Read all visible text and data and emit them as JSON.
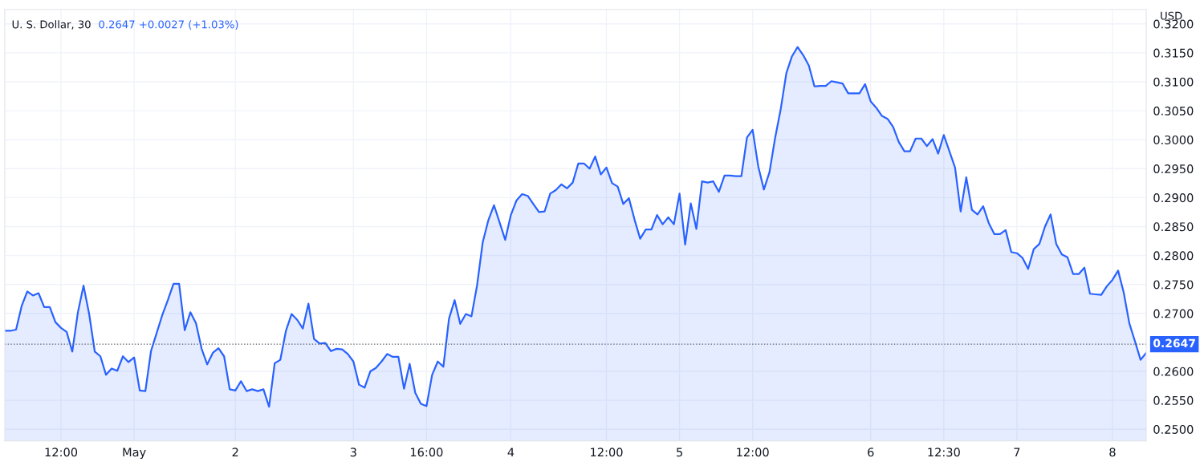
{
  "chart_data": {
    "type": "area",
    "title": "U. S. Dollar, 30",
    "subtitle": "0.2647 +0.0027 (+1.03%)",
    "ylabel": "USD",
    "series": [
      {
        "color": "#2962ff",
        "values": [
          0.267,
          0.267,
          0.2672,
          0.2713,
          0.2738,
          0.2731,
          0.2735,
          0.2711,
          0.2711,
          0.2685,
          0.2675,
          0.2668,
          0.2634,
          0.2702,
          0.2748,
          0.2699,
          0.2634,
          0.2626,
          0.2594,
          0.2605,
          0.2601,
          0.2626,
          0.2616,
          0.2624,
          0.2567,
          0.2566,
          0.2635,
          0.2666,
          0.2697,
          0.2723,
          0.2751,
          0.2751,
          0.2671,
          0.2702,
          0.2683,
          0.2639,
          0.2612,
          0.2632,
          0.264,
          0.2626,
          0.2569,
          0.2567,
          0.2583,
          0.2566,
          0.2569,
          0.2566,
          0.2569,
          0.2539,
          0.2614,
          0.262,
          0.267,
          0.2699,
          0.2689,
          0.2674,
          0.2717,
          0.2656,
          0.2648,
          0.2649,
          0.2635,
          0.2639,
          0.2638,
          0.263,
          0.2617,
          0.2577,
          0.2572,
          0.26,
          0.2606,
          0.2617,
          0.263,
          0.2625,
          0.2625,
          0.257,
          0.2613,
          0.2563,
          0.2544,
          0.254,
          0.2594,
          0.2617,
          0.2608,
          0.2691,
          0.2723,
          0.2682,
          0.2699,
          0.2695,
          0.2749,
          0.2823,
          0.2861,
          0.2887,
          0.2857,
          0.2827,
          0.287,
          0.2895,
          0.2906,
          0.2903,
          0.2889,
          0.2875,
          0.2876,
          0.2907,
          0.2913,
          0.2923,
          0.2916,
          0.2926,
          0.2959,
          0.2959,
          0.295,
          0.2971,
          0.294,
          0.2952,
          0.2925,
          0.2919,
          0.2889,
          0.2899,
          0.2862,
          0.2829,
          0.2845,
          0.2845,
          0.287,
          0.2854,
          0.2866,
          0.2854,
          0.2907,
          0.2819,
          0.289,
          0.2846,
          0.2928,
          0.2926,
          0.2928,
          0.291,
          0.2938,
          0.2938,
          0.2937,
          0.2937,
          0.3004,
          0.3017,
          0.2954,
          0.2914,
          0.2944,
          0.3003,
          0.3053,
          0.3115,
          0.3144,
          0.316,
          0.3146,
          0.3128,
          0.3092,
          0.3093,
          0.3093,
          0.3101,
          0.3099,
          0.3097,
          0.308,
          0.308,
          0.308,
          0.3096,
          0.3066,
          0.3055,
          0.3041,
          0.3036,
          0.3022,
          0.2996,
          0.298,
          0.298,
          0.3002,
          0.3002,
          0.2989,
          0.3001,
          0.2976,
          0.3008,
          0.298,
          0.2952,
          0.2876,
          0.2935,
          0.2879,
          0.2871,
          0.2885,
          0.2856,
          0.2837,
          0.2837,
          0.2844,
          0.2806,
          0.2804,
          0.2796,
          0.2777,
          0.2811,
          0.282,
          0.285,
          0.2871,
          0.282,
          0.2802,
          0.2797,
          0.2768,
          0.2768,
          0.2779,
          0.2734,
          0.2733,
          0.2732,
          0.2747,
          0.2758,
          0.2774,
          0.2736,
          0.2683,
          0.2652,
          0.262,
          0.2632
        ]
      }
    ],
    "categories": [
      null,
      null,
      null,
      null,
      null,
      null,
      null,
      null,
      null,
      null,
      "12:00",
      null,
      null,
      null,
      null,
      null,
      null,
      null,
      null,
      null,
      null,
      null,
      null,
      "May",
      null,
      null,
      null,
      null,
      null,
      null,
      null,
      null,
      null,
      null,
      null,
      null,
      null,
      null,
      null,
      null,
      null,
      "2",
      null,
      null,
      null,
      null,
      null,
      null,
      null,
      null,
      null,
      null,
      null,
      null,
      null,
      null,
      null,
      null,
      null,
      null,
      null,
      null,
      "3",
      null,
      null,
      null,
      null,
      null,
      null,
      null,
      null,
      null,
      null,
      null,
      null,
      "16:00",
      null,
      null,
      null,
      null,
      null,
      null,
      null,
      null,
      null,
      null,
      null,
      null,
      null,
      null,
      "4",
      null,
      null,
      null,
      null,
      null,
      null,
      null,
      null,
      null,
      null,
      null,
      null,
      null,
      null,
      null,
      null,
      "12:00",
      null,
      null,
      null,
      null,
      null,
      null,
      null,
      null,
      null,
      null,
      null,
      null,
      "5",
      null,
      null,
      null,
      null,
      null,
      null,
      null,
      null,
      null,
      null,
      null,
      null,
      "12:00",
      null,
      null,
      null,
      null,
      null,
      null,
      null,
      null,
      null,
      null,
      null,
      null,
      null,
      null,
      null,
      null,
      null,
      null,
      null,
      null,
      "6",
      null,
      null,
      null,
      null,
      null,
      null,
      null,
      null,
      null,
      null,
      null,
      null,
      "12:30",
      null,
      null,
      null,
      null,
      null,
      null,
      null,
      null,
      null,
      null,
      null,
      null,
      "7",
      null,
      null,
      null,
      null,
      null,
      null,
      null,
      null,
      null,
      null,
      null,
      null,
      null,
      null,
      null,
      null,
      "8",
      null,
      null,
      null,
      null,
      null,
      null
    ],
    "ylim": [
      0.248,
      0.3225
    ],
    "yticks": [
      {
        "value": 0.25,
        "label": "0.2500"
      },
      {
        "value": 0.255,
        "label": "0.2550"
      },
      {
        "value": 0.26,
        "label": "0.2600"
      },
      {
        "value": 0.27,
        "label": "0.2700"
      },
      {
        "value": 0.275,
        "label": "0.2750"
      },
      {
        "value": 0.28,
        "label": "0.2800"
      },
      {
        "value": 0.285,
        "label": "0.2850"
      },
      {
        "value": 0.29,
        "label": "0.2900"
      },
      {
        "value": 0.295,
        "label": "0.2950"
      },
      {
        "value": 0.3,
        "label": "0.3000"
      },
      {
        "value": 0.305,
        "label": "0.3050"
      },
      {
        "value": 0.31,
        "label": "0.3100"
      },
      {
        "value": 0.315,
        "label": "0.3150"
      },
      {
        "value": 0.32,
        "label": "0.3200"
      }
    ],
    "ref_lines": [
      {
        "axis": "y",
        "value": 0.2647,
        "label": "0.2647",
        "color": "#5d606b",
        "line_style": "dotted"
      }
    ],
    "grid": true
  }
}
